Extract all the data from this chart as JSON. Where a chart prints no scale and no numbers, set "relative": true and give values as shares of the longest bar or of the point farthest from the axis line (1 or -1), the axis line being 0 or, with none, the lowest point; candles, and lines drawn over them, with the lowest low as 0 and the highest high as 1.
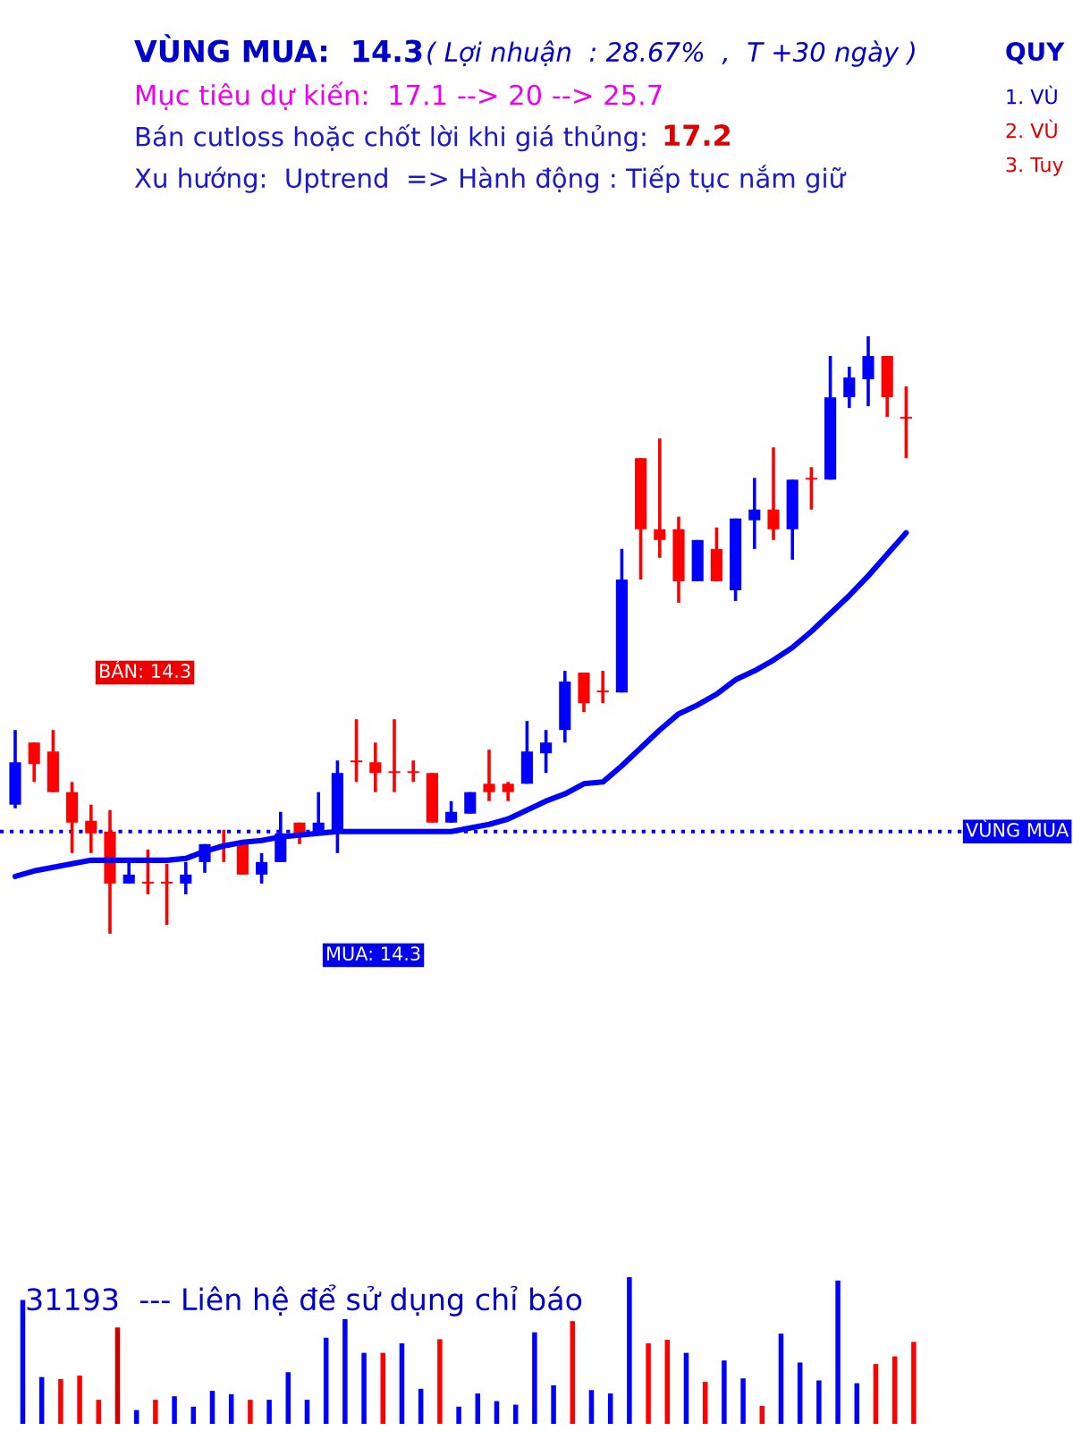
{
  "chart_data": [
    {
      "type": "candlestick",
      "title": "VÙNG MUA:  14.3",
      "subtitle": "( Lợi nhuận  : 28.67%  ,  T +30 ngày )",
      "annotations": [
        "Mục tiêu dự kiến:  17.1 --> 20 --> 25.7",
        "Bán cutloss hoặc chốt lời khi giá thủng:",
        "17.2",
        "Xu hướng:  Uptrend  => Hành động : Tiếp tục nắm giữ",
        "QUY",
        "1. VÙ",
        "2. VÙ",
        "3. Tuy",
        "BÁN: 14.3",
        "MUA: 14.3"
      ],
      "relative": true,
      "categories": [
        null,
        null,
        null,
        null,
        null,
        null,
        null,
        null,
        null,
        null,
        null,
        null,
        null,
        null,
        null,
        null,
        null,
        null,
        null,
        null,
        null,
        null,
        null,
        null,
        null,
        null,
        null,
        null,
        null,
        null,
        null,
        null,
        null,
        null,
        null,
        null,
        null,
        null,
        null,
        null,
        null,
        null,
        null,
        null,
        null,
        null,
        null,
        null
      ],
      "ohlc": [
        [
          0.216,
          0.341,
          0.21,
          0.287
        ],
        [
          0.32,
          0.32,
          0.254,
          0.284
        ],
        [
          0.305,
          0.341,
          0.237,
          0.237
        ],
        [
          0.237,
          0.254,
          0.135,
          0.186
        ],
        [
          0.189,
          0.216,
          0.135,
          0.168
        ],
        [
          0.171,
          0.207,
          0,
          0.084
        ],
        [
          0.084,
          0.123,
          0.084,
          0.099
        ],
        [
          0.087,
          0.141,
          0.066,
          0.084
        ],
        [
          0.087,
          0.117,
          0.015,
          0.084
        ],
        [
          0.084,
          0.12,
          0.066,
          0.099
        ],
        [
          0.12,
          0.15,
          0.102,
          0.15
        ],
        [
          0.15,
          0.174,
          0.12,
          0.144
        ],
        [
          0.15,
          0.15,
          0.099,
          0.099
        ],
        [
          0.099,
          0.135,
          0.084,
          0.12
        ],
        [
          0.12,
          0.204,
          0.12,
          0.168
        ],
        [
          0.186,
          0.186,
          0.15,
          0.168
        ],
        [
          0.168,
          0.237,
          0.168,
          0.186
        ],
        [
          0.168,
          0.29,
          0.135,
          0.269
        ],
        [
          0.29,
          0.359,
          0.254,
          0.287
        ],
        [
          0.287,
          0.32,
          0.237,
          0.269
        ],
        [
          0.272,
          0.359,
          0.237,
          0.269
        ],
        [
          0.272,
          0.29,
          0.254,
          0.269
        ],
        [
          0.269,
          0.269,
          0.186,
          0.186
        ],
        [
          0.186,
          0.222,
          0.186,
          0.204
        ],
        [
          0.201,
          0.237,
          0.201,
          0.237
        ],
        [
          0.251,
          0.308,
          0.222,
          0.237
        ],
        [
          0.251,
          0.254,
          0.222,
          0.237
        ],
        [
          0.251,
          0.356,
          0.251,
          0.305
        ],
        [
          0.302,
          0.341,
          0.269,
          0.32
        ],
        [
          0.341,
          0.44,
          0.32,
          0.422
        ],
        [
          0.437,
          0.437,
          0.371,
          0.386
        ],
        [
          0.407,
          0.44,
          0.386,
          0.404
        ],
        [
          0.404,
          0.644,
          0.404,
          0.593
        ],
        [
          0.796,
          0.796,
          0.593,
          0.677
        ],
        [
          0.677,
          0.829,
          0.629,
          0.659
        ],
        [
          0.677,
          0.698,
          0.554,
          0.59
        ],
        [
          0.59,
          0.659,
          0.59,
          0.659
        ],
        [
          0.644,
          0.68,
          0.59,
          0.59
        ],
        [
          0.575,
          0.695,
          0.557,
          0.695
        ],
        [
          0.692,
          0.763,
          0.644,
          0.71
        ],
        [
          0.71,
          0.814,
          0.659,
          0.677
        ],
        [
          0.677,
          0.76,
          0.626,
          0.76
        ],
        [
          0.763,
          0.781,
          0.71,
          0.76
        ],
        [
          0.76,
          0.967,
          0.76,
          0.898
        ],
        [
          0.898,
          0.949,
          0.88,
          0.931
        ],
        [
          0.928,
          1,
          0.883,
          0.967
        ],
        [
          0.967,
          0.967,
          0.865,
          0.898
        ],
        [
          0.865,
          0.916,
          0.796,
          0.862
        ]
      ],
      "colors": [
        "#0000ff",
        "#ff0000",
        "#ff0000",
        "#ff0000",
        "#ff0000",
        "#ff0000",
        "#0000ff",
        "#ff0000",
        "#ff0000",
        "#0000ff",
        "#0000ff",
        "#ff0000",
        "#ff0000",
        "#0000ff",
        "#0000ff",
        "#ff0000",
        "#0000ff",
        "#0000ff",
        "#ff0000",
        "#ff0000",
        "#ff0000",
        "#ff0000",
        "#ff0000",
        "#0000ff",
        "#0000ff",
        "#ff0000",
        "#ff0000",
        "#0000ff",
        "#0000ff",
        "#0000ff",
        "#ff0000",
        "#ff0000",
        "#0000ff",
        "#ff0000",
        "#ff0000",
        "#ff0000",
        "#0000ff",
        "#ff0000",
        "#0000ff",
        "#0000ff",
        "#ff0000",
        "#0000ff",
        "#ff0000",
        "#0000ff",
        "#0000ff",
        "#0000ff",
        "#ff0000",
        "#ff0000"
      ],
      "series": [
        {
          "type": "line",
          "color": "#0000ff",
          "values": [
            0.096,
            0.105,
            0.111,
            0.117,
            0.123,
            0.123,
            0.123,
            0.123,
            0.123,
            0.126,
            0.138,
            0.147,
            0.153,
            0.156,
            0.162,
            0.165,
            0.168,
            0.171,
            0.171,
            0.171,
            0.171,
            0.171,
            0.171,
            0.171,
            0.177,
            0.183,
            0.192,
            0.207,
            0.222,
            0.234,
            0.251,
            0.254,
            0.281,
            0.311,
            0.341,
            0.368,
            0.383,
            0.401,
            0.425,
            0.44,
            0.458,
            0.479,
            0.506,
            0.536,
            0.566,
            0.599,
            0.635,
            0.671
          ]
        }
      ],
      "ref_lines": [
        {
          "axis": "y",
          "value": 0.171,
          "label": "VÙNG MUA",
          "color": "#0000ff",
          "line_style": "dotted"
        }
      ],
      "legend": false
    },
    {
      "type": "bar",
      "relative": true,
      "annotations": [
        "31193  --- Liên hệ để sử dụng chỉ báo"
      ],
      "categories": [
        null,
        null,
        null,
        null,
        null,
        null,
        null,
        null,
        null,
        null,
        null,
        null,
        null,
        null,
        null,
        null,
        null,
        null,
        null,
        null,
        null,
        null,
        null,
        null,
        null,
        null,
        null,
        null,
        null,
        null,
        null,
        null,
        null,
        null,
        null,
        null,
        null,
        null,
        null,
        null,
        null,
        null,
        null,
        null,
        null,
        null,
        null,
        null
      ],
      "values": [
        0.845,
        0.319,
        0.305,
        0.329,
        0.164,
        0.657,
        0.094,
        0.164,
        0.188,
        0.117,
        0.225,
        0.202,
        0.164,
        0.164,
        0.352,
        0.164,
        0.587,
        0.714,
        0.484,
        0.484,
        0.549,
        0.239,
        0.577,
        0.117,
        0.207,
        0.155,
        0.131,
        0.624,
        0.263,
        0.7,
        0.23,
        0.207,
        1,
        0.549,
        0.573,
        0.484,
        0.286,
        0.432,
        0.31,
        0.122,
        0.615,
        0.418,
        0.296,
        0.977,
        0.277,
        0.408,
        0.46,
        0.559
      ],
      "colors": [
        "#0000ff",
        "#0000ff",
        "#ff0000",
        "#ff0000",
        "#ff0000",
        "#cc0000",
        "#0000ff",
        "#ff0000",
        "#0000ff",
        "#0000ff",
        "#0000ff",
        "#0000ff",
        "#ff0000",
        "#0000ff",
        "#0000ff",
        "#0000ff",
        "#0000ff",
        "#0000ff",
        "#0000ff",
        "#ff0000",
        "#0000ff",
        "#0000ff",
        "#ff0000",
        "#0000ff",
        "#0000ff",
        "#0000ff",
        "#0000ff",
        "#0000ff",
        "#0000ff",
        "#ff0000",
        "#0000ff",
        "#0000ff",
        "#0000ff",
        "#ff0000",
        "#ff0000",
        "#0000ff",
        "#ff0000",
        "#0000ff",
        "#0000ff",
        "#ff0000",
        "#0000ff",
        "#0000ff",
        "#0000ff",
        "#0000ff",
        "#0000ff",
        "#ff0000",
        "#ff0000",
        "#ff0000"
      ],
      "legend": false
    }
  ]
}
